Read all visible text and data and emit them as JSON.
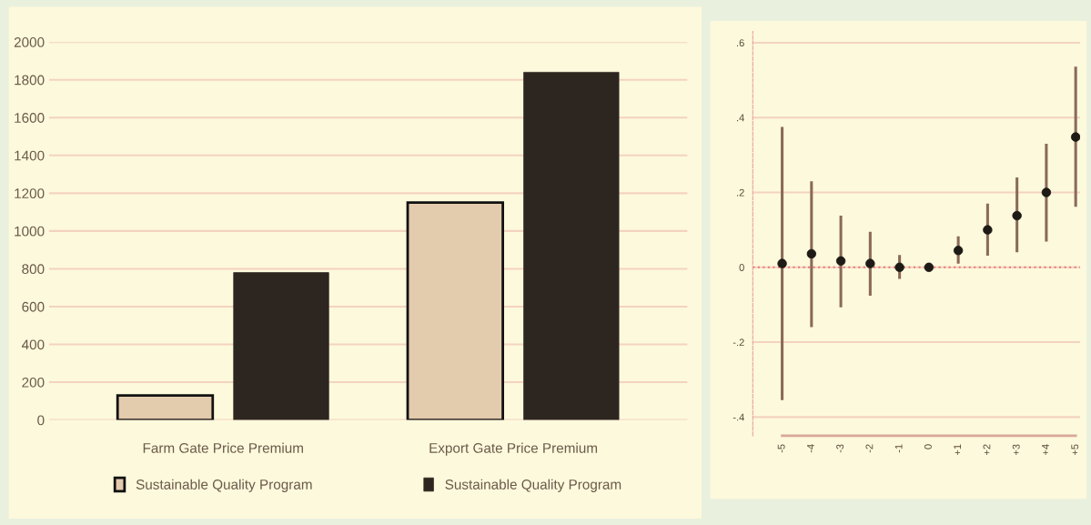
{
  "chart_data": [
    {
      "type": "bar",
      "categories": [
        "Farm Gate Price Premium",
        "Export Gate Price Premium"
      ],
      "series": [
        {
          "name": "Sustainable Quality Program",
          "color": "#e3cbad",
          "values": [
            130,
            1150
          ]
        },
        {
          "name": "Sustainable Quality Program",
          "color": "#2d2620",
          "values": [
            780,
            1840
          ]
        }
      ],
      "ylim": [
        0,
        2000
      ],
      "yticks": [
        0,
        200,
        400,
        600,
        800,
        1000,
        1200,
        1400,
        1600,
        1800,
        2000
      ],
      "grid": "y",
      "legend": "bottom"
    },
    {
      "type": "scatter",
      "categories": [
        "-5",
        "-4",
        "-3",
        "-2",
        "-1",
        "0",
        "+1",
        "+2",
        "+3",
        "+4",
        "+5"
      ],
      "series": [
        {
          "color": "#1e1a16",
          "values": [
            0.01,
            0.036,
            0.017,
            0.01,
            0,
            0,
            0.045,
            0.1,
            0.138,
            0.2,
            0.348
          ],
          "errors": [
            [
              -0.355,
              0.375
            ],
            [
              -0.16,
              0.23
            ],
            [
              -0.107,
              0.138
            ],
            [
              -0.076,
              0.095
            ],
            [
              -0.031,
              0.033
            ],
            null,
            [
              0.01,
              0.083
            ],
            [
              0.031,
              0.17
            ],
            [
              0.04,
              0.24
            ],
            [
              0.069,
              0.33
            ],
            [
              0.162,
              0.536
            ]
          ]
        }
      ],
      "ylim": [
        -0.45,
        0.63
      ],
      "yticks": [
        {
          "value": -0.4,
          "label": "-.4"
        },
        {
          "value": -0.2,
          "label": "-.2"
        },
        0,
        {
          "value": 0.2,
          "label": ".2"
        },
        {
          "value": 0.4,
          "label": ".4"
        },
        {
          "value": 0.6,
          "label": ".6"
        }
      ],
      "grid": "y",
      "marker": "circle",
      "ref_lines": [
        {
          "axis": "y",
          "value": 0,
          "color": "#e87a7a",
          "line_style": "dotted"
        }
      ]
    }
  ]
}
